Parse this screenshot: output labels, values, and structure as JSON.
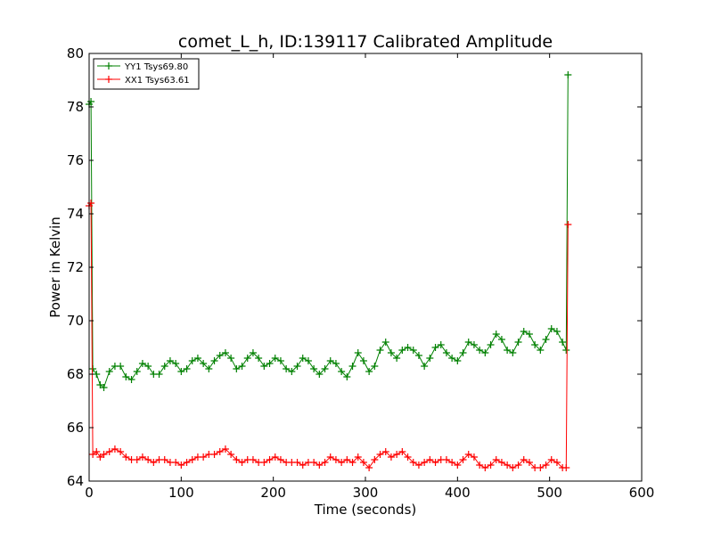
{
  "chart_data": {
    "type": "line",
    "title": "comet_L_h, ID:139117 Calibrated Amplitude",
    "xlabel": "Time (seconds)",
    "ylabel": "Power in Kelvin",
    "xlim": [
      0,
      600
    ],
    "ylim": [
      64,
      80
    ],
    "xticks": [
      0,
      100,
      200,
      300,
      400,
      500,
      600
    ],
    "yticks": [
      64,
      66,
      68,
      70,
      72,
      74,
      76,
      78,
      80
    ],
    "grid": false,
    "legend_position": "top-left",
    "marker": "+",
    "series": [
      {
        "name": "YY1 Tsys69.80",
        "color": "#008000",
        "x": [
          0,
          2,
          4,
          8,
          12,
          16,
          22,
          28,
          34,
          40,
          46,
          52,
          58,
          64,
          70,
          76,
          82,
          88,
          94,
          100,
          106,
          112,
          118,
          124,
          130,
          136,
          142,
          148,
          154,
          160,
          166,
          172,
          178,
          184,
          190,
          196,
          202,
          208,
          214,
          220,
          226,
          232,
          238,
          244,
          250,
          256,
          262,
          268,
          274,
          280,
          286,
          292,
          298,
          304,
          310,
          316,
          322,
          328,
          334,
          340,
          346,
          352,
          358,
          364,
          370,
          376,
          382,
          388,
          394,
          400,
          406,
          412,
          418,
          424,
          430,
          436,
          442,
          448,
          454,
          460,
          466,
          472,
          478,
          484,
          490,
          496,
          502,
          508,
          514,
          518,
          520
        ],
        "values": [
          78.1,
          78.2,
          68.2,
          68.0,
          67.6,
          67.5,
          68.1,
          68.3,
          68.3,
          67.9,
          67.8,
          68.1,
          68.4,
          68.3,
          68.0,
          68.0,
          68.3,
          68.5,
          68.4,
          68.1,
          68.2,
          68.5,
          68.6,
          68.4,
          68.2,
          68.5,
          68.7,
          68.8,
          68.6,
          68.2,
          68.3,
          68.6,
          68.8,
          68.6,
          68.3,
          68.4,
          68.6,
          68.5,
          68.2,
          68.1,
          68.3,
          68.6,
          68.5,
          68.2,
          68.0,
          68.2,
          68.5,
          68.4,
          68.1,
          67.9,
          68.3,
          68.8,
          68.5,
          68.1,
          68.3,
          68.9,
          69.2,
          68.8,
          68.6,
          68.9,
          69.0,
          68.9,
          68.7,
          68.3,
          68.6,
          69.0,
          69.1,
          68.8,
          68.6,
          68.5,
          68.8,
          69.2,
          69.1,
          68.9,
          68.8,
          69.1,
          69.5,
          69.3,
          68.9,
          68.8,
          69.2,
          69.6,
          69.5,
          69.1,
          68.9,
          69.3,
          69.7,
          69.6,
          69.2,
          68.9,
          79.2
        ]
      },
      {
        "name": "XX1 Tsys63.61",
        "color": "#ff0000",
        "x": [
          0,
          2,
          4,
          8,
          12,
          16,
          22,
          28,
          34,
          40,
          46,
          52,
          58,
          64,
          70,
          76,
          82,
          88,
          94,
          100,
          106,
          112,
          118,
          124,
          130,
          136,
          142,
          148,
          154,
          160,
          166,
          172,
          178,
          184,
          190,
          196,
          202,
          208,
          214,
          220,
          226,
          232,
          238,
          244,
          250,
          256,
          262,
          268,
          274,
          280,
          286,
          292,
          298,
          304,
          310,
          316,
          322,
          328,
          334,
          340,
          346,
          352,
          358,
          364,
          370,
          376,
          382,
          388,
          394,
          400,
          406,
          412,
          418,
          424,
          430,
          436,
          442,
          448,
          454,
          460,
          466,
          472,
          478,
          484,
          490,
          496,
          502,
          508,
          514,
          518,
          520
        ],
        "values": [
          74.3,
          74.4,
          65.0,
          65.1,
          64.9,
          65.0,
          65.1,
          65.2,
          65.1,
          64.9,
          64.8,
          64.8,
          64.9,
          64.8,
          64.7,
          64.8,
          64.8,
          64.7,
          64.7,
          64.6,
          64.7,
          64.8,
          64.9,
          64.9,
          65.0,
          65.0,
          65.1,
          65.2,
          65.0,
          64.8,
          64.7,
          64.8,
          64.8,
          64.7,
          64.7,
          64.8,
          64.9,
          64.8,
          64.7,
          64.7,
          64.7,
          64.6,
          64.7,
          64.7,
          64.6,
          64.7,
          64.9,
          64.8,
          64.7,
          64.8,
          64.7,
          64.9,
          64.7,
          64.5,
          64.8,
          65.0,
          65.1,
          64.9,
          65.0,
          65.1,
          64.9,
          64.7,
          64.6,
          64.7,
          64.8,
          64.7,
          64.8,
          64.8,
          64.7,
          64.6,
          64.8,
          65.0,
          64.9,
          64.6,
          64.5,
          64.6,
          64.8,
          64.7,
          64.6,
          64.5,
          64.6,
          64.8,
          64.7,
          64.5,
          64.5,
          64.6,
          64.8,
          64.7,
          64.5,
          64.5,
          73.6
        ]
      }
    ]
  }
}
